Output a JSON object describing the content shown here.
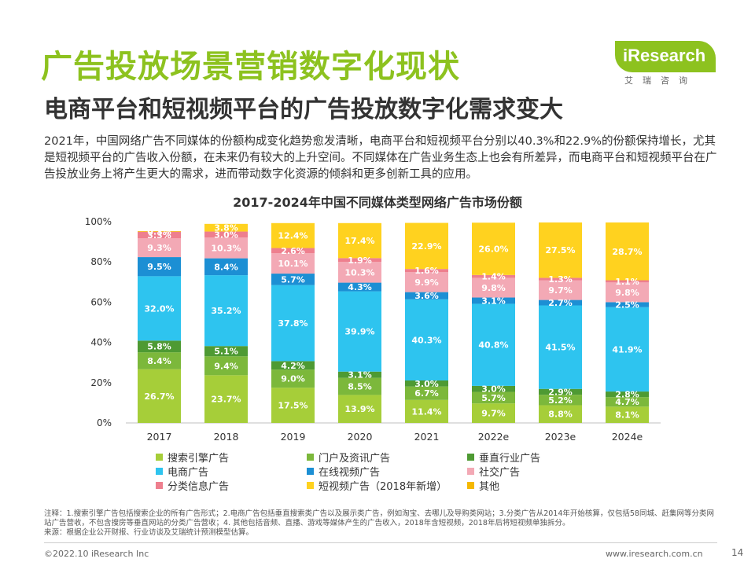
{
  "header": {
    "title": "广告投放场景营销数字化现状",
    "subtitle": "电商平台和短视频平台的广告投放数字化需求变大",
    "logo_main": "iResearch",
    "logo_sub": "艾瑞咨询"
  },
  "summary": "2021年，中国网络广告不同媒体的份额构成变化趋势愈发清晰，电商平台和短视频平台分别以40.3%和22.9%的份额保持增长，尤其是短视频平台的广告收入份额，在未来仍有较大的上升空间。不同媒体在广告业务生态上也会有所差异，而电商平台和短视频平台在广告投放业务上将产生更大的需求，进而带动数字化资源的倾斜和更多创新工具的应用。",
  "chart_data": {
    "type": "bar",
    "stacked": true,
    "title": "2017-2024年中国不同媒体类型网络广告市场份额",
    "categories": [
      "2017",
      "2018",
      "2019",
      "2020",
      "2021",
      "2022e",
      "2023e",
      "2024e"
    ],
    "y_ticks": [
      "0%",
      "20%",
      "40%",
      "60%",
      "80%",
      "100%"
    ],
    "ylim": [
      0,
      100
    ],
    "series": [
      {
        "name": "搜索引擎广告",
        "color": "#a6ce39",
        "values": [
          26.7,
          23.7,
          17.5,
          13.9,
          11.4,
          9.7,
          8.8,
          8.1
        ],
        "labels": [
          "26.7%",
          "23.7%",
          "17.5%",
          "13.9%",
          "11.4%",
          "9.7%",
          "8.8%",
          "8.1%"
        ]
      },
      {
        "name": "门户及资讯广告",
        "color": "#7cb83b",
        "values": [
          8.4,
          9.4,
          9.0,
          8.5,
          6.7,
          5.7,
          5.2,
          4.7
        ],
        "labels": [
          "8.4%",
          "9.4%",
          "9.0%",
          "8.5%",
          "6.7%",
          "5.7%",
          "5.2%",
          "4.7%"
        ]
      },
      {
        "name": "垂直行业广告",
        "color": "#4e9a33",
        "values": [
          5.8,
          5.1,
          4.2,
          3.1,
          3.0,
          3.0,
          2.9,
          2.8
        ],
        "labels": [
          "5.8%",
          "5.1%",
          "4.2%",
          "3.1%",
          "3.0%",
          "3.0%",
          "2.9%",
          "2.8%"
        ]
      },
      {
        "name": "电商广告",
        "color": "#2ec4ef",
        "values": [
          32.0,
          35.2,
          37.8,
          39.9,
          40.3,
          40.8,
          41.5,
          41.9
        ],
        "labels": [
          "32.0%",
          "35.2%",
          "37.8%",
          "39.9%",
          "40.3%",
          "40.8%",
          "41.5%",
          "41.9%"
        ]
      },
      {
        "name": "在线视频广告",
        "color": "#1c8fd4",
        "values": [
          9.5,
          8.4,
          5.7,
          4.3,
          3.6,
          3.1,
          2.7,
          2.5
        ],
        "labels": [
          "9.5%",
          "8.4%",
          "5.7%",
          "4.3%",
          "3.6%",
          "3.1%",
          "2.7%",
          "2.5%"
        ]
      },
      {
        "name": "社交广告",
        "color": "#f3a9b5",
        "values": [
          9.3,
          10.3,
          10.1,
          10.3,
          9.9,
          9.8,
          9.7,
          9.8
        ],
        "labels": [
          "9.3%",
          "10.3%",
          "10.1%",
          "10.3%",
          "9.9%",
          "9.8%",
          "9.7%",
          "9.8%"
        ]
      },
      {
        "name": "分类信息广告",
        "color": "#ee7f8e",
        "values": [
          3.3,
          3.0,
          2.6,
          1.9,
          1.6,
          1.4,
          1.3,
          1.1
        ],
        "labels": [
          "3.3%",
          "3.0%",
          "2.6%",
          "1.9%",
          "1.6%",
          "1.4%",
          "1.3%",
          "1.1%"
        ]
      },
      {
        "name": "短视频广告（2018年新增）",
        "color": "#ffd21f",
        "values": [
          0,
          3.8,
          12.4,
          17.4,
          22.9,
          26.0,
          27.5,
          28.7
        ],
        "labels": [
          "",
          "3.8%",
          "12.4%",
          "17.4%",
          "22.9%",
          "26.0%",
          "27.5%",
          "28.7%"
        ]
      },
      {
        "name": "其他",
        "color": "#f5b800",
        "values": [
          0.3,
          0,
          0,
          0,
          0,
          0,
          0,
          0
        ],
        "labels": [
          "0.3%",
          "",
          "",
          "",
          "",
          "",
          "",
          ""
        ]
      }
    ],
    "legend_position": "bottom"
  },
  "notes": {
    "line1": "注释：1.搜索引擎广告包括搜索企业的所有广告形式；2.电商广告包括垂直搜索类广告以及展示类广告，例如淘宝、去哪儿及导购类网站；3.分类广告从2014年开始核算，仅包括58同城、赶集网等分类网站广告营收，不包含搜房等垂直网站的分类广告营收；4. 其他包括音频、直播、游戏等媒体产生的广告收入，2018年含短视频，2018年后将短视频单独拆分。",
    "line2": "来源：根据企业公开财报、行业访谈及艾瑞统计预测模型估算。"
  },
  "footer": {
    "copyright": "©2022.10 iResearch Inc",
    "website": "www.iresearch.com.cn",
    "page": "14"
  }
}
